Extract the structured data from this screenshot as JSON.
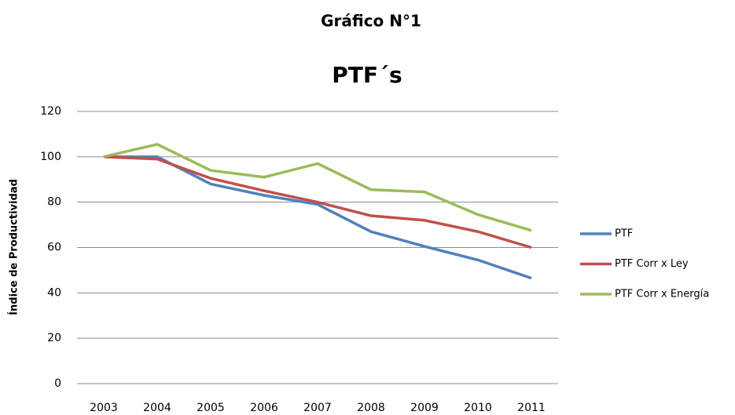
{
  "heading": "Gráfico N°1",
  "chart_data": {
    "type": "line",
    "title": "PTF´s",
    "y_label": "Índice de Productividad",
    "categories": [
      "2003",
      "2004",
      "2005",
      "2006",
      "2007",
      "2008",
      "2009",
      "2010",
      "2011"
    ],
    "series": [
      {
        "name": "PTF",
        "color": "#4f81bd",
        "values": [
          100,
          100,
          88,
          83,
          79,
          67,
          60.5,
          54.5,
          46.5
        ]
      },
      {
        "name": "PTF Corr x Ley",
        "color": "#c0504d",
        "values": [
          100,
          99,
          90.5,
          85,
          80,
          74,
          72,
          67,
          60
        ]
      },
      {
        "name": "PTF Corr x Energía",
        "color": "#9bbb59",
        "values": [
          100,
          105.5,
          94,
          91,
          97,
          85.5,
          84.5,
          74.5,
          67.5
        ]
      }
    ],
    "ylim": [
      0,
      120
    ],
    "yticks": [
      0,
      20,
      40,
      60,
      80,
      100,
      120
    ],
    "grid": true,
    "legend": "right"
  }
}
